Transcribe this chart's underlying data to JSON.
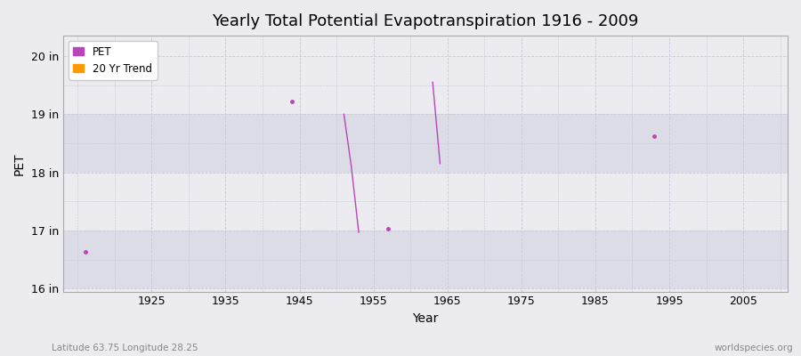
{
  "title": "Yearly Total Potential Evapotranspiration 1916 - 2009",
  "xlabel": "Year",
  "ylabel": "PET",
  "xlim": [
    1913,
    2011
  ],
  "ylim": [
    15.95,
    20.35
  ],
  "xticks": [
    1925,
    1935,
    1945,
    1955,
    1965,
    1975,
    1985,
    1995,
    2005
  ],
  "yticks": [
    16,
    17,
    18,
    19,
    20
  ],
  "ytick_labels": [
    "16 in",
    "17 in",
    "18 in",
    "19 in",
    "20 in"
  ],
  "background_light": "#ebebf0",
  "background_dark": "#dcdce6",
  "grid_color": "#c8c8d8",
  "pet_color": "#bb44bb",
  "trend_color": "#ff9900",
  "pet_isolated_points": [
    [
      1916,
      16.63
    ],
    [
      1944,
      19.22
    ],
    [
      1957,
      17.03
    ],
    [
      1993,
      18.62
    ]
  ],
  "pet_line_segments": [
    [
      [
        1951,
        19.0
      ],
      [
        1952,
        18.1
      ],
      [
        1953,
        16.97
      ]
    ],
    [
      [
        1963,
        19.55
      ],
      [
        1964,
        18.15
      ]
    ]
  ],
  "subtitle": "Latitude 63.75 Longitude 28.25",
  "watermark": "worldspecies.org",
  "legend_pet_label": "PET",
  "legend_trend_label": "20 Yr Trend"
}
